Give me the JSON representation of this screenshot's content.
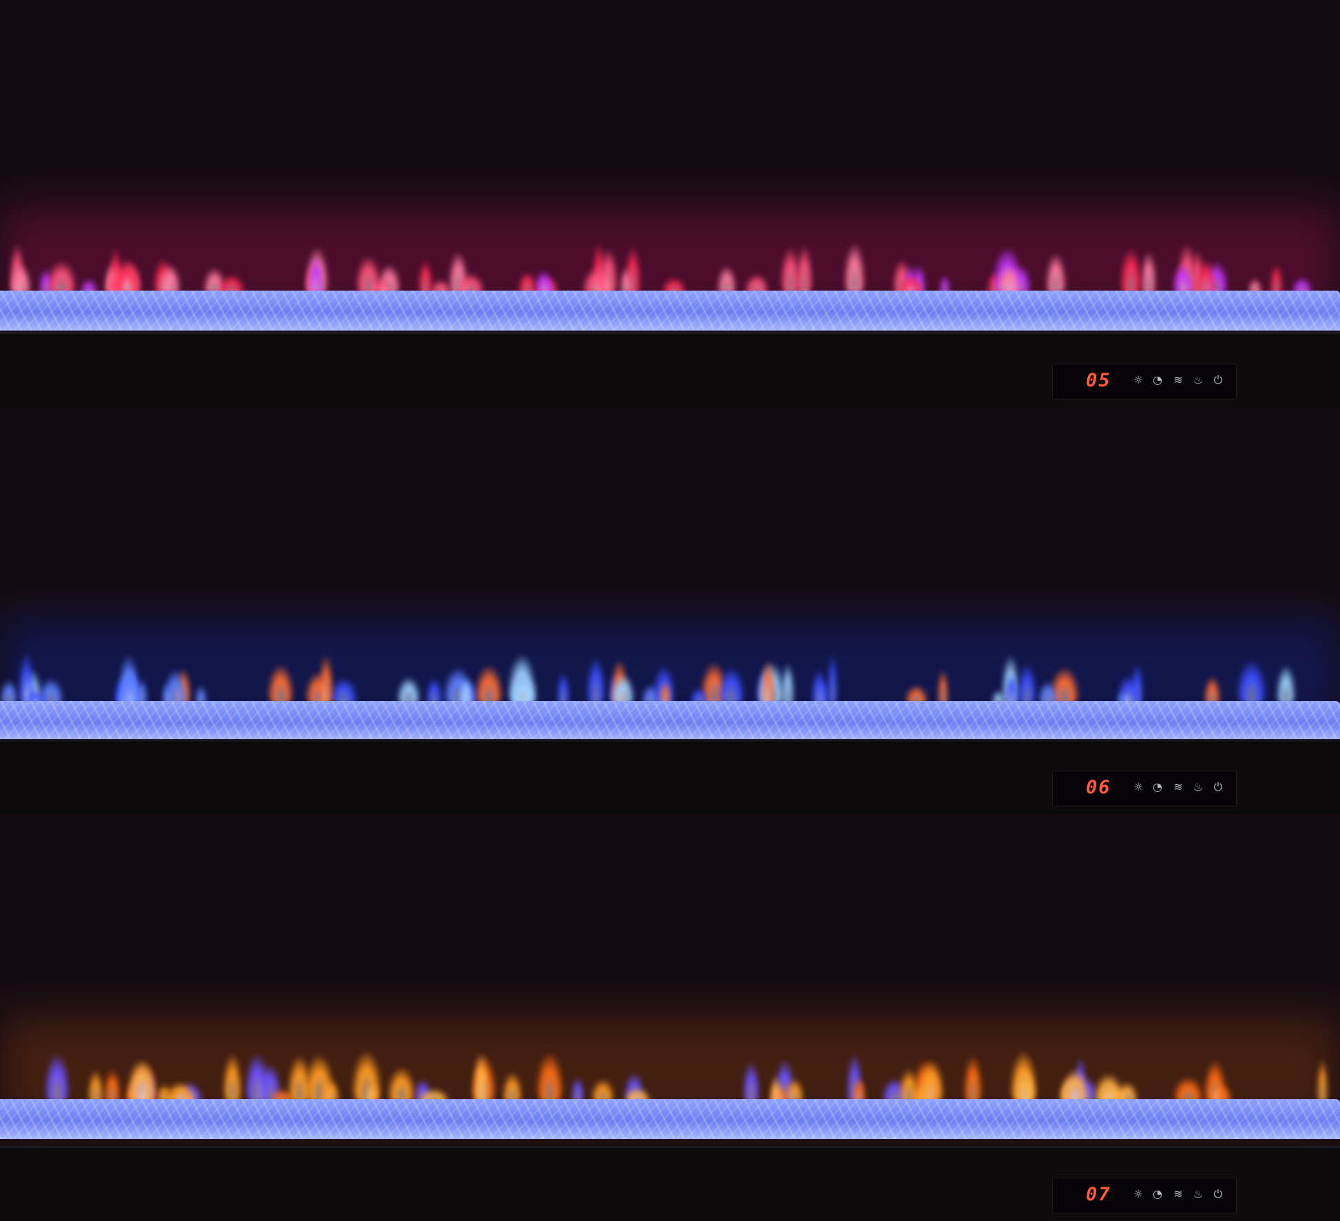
{
  "panels": [
    {
      "display": "05",
      "flame_colors": [
        "#ff2a55",
        "#ff4f7a",
        "#c034ff",
        "#ff7aa0"
      ],
      "glow": "#7a1040"
    },
    {
      "display": "06",
      "flame_colors": [
        "#3a4dff",
        "#5a7dff",
        "#ff6a30",
        "#9ad0ff"
      ],
      "glow": "#10207a"
    },
    {
      "display": "07",
      "flame_colors": [
        "#ff9a20",
        "#ffb040",
        "#ff6a10",
        "#6a50ff"
      ],
      "glow": "#6a3010"
    }
  ],
  "control_icons": [
    "brightness-icon",
    "timer-icon",
    "heat-icon",
    "flame-icon",
    "power-icon"
  ]
}
